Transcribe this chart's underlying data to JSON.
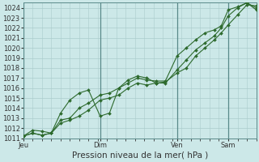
{
  "background_color": "#cce8e8",
  "grid_color": "#aacccc",
  "line_color": "#2d6a2d",
  "marker_color": "#2d6a2d",
  "xlabel": "Pression niveau de la mer( hPa )",
  "ylim": [
    1011,
    1024.5
  ],
  "ytick_min": 1011,
  "ytick_max": 1024,
  "xtick_labels": [
    "Jeu",
    "Dim",
    "Ven",
    "Sam"
  ],
  "xtick_positions": [
    0.0,
    0.33,
    0.66,
    0.88
  ],
  "xlim": [
    0.0,
    1.0
  ],
  "series1_x": [
    0.0,
    0.04,
    0.08,
    0.12,
    0.16,
    0.2,
    0.24,
    0.28,
    0.33,
    0.37,
    0.41,
    0.45,
    0.49,
    0.53,
    0.57,
    0.61,
    0.66,
    0.7,
    0.74,
    0.78,
    0.82,
    0.85,
    0.88,
    0.92,
    0.96,
    1.0
  ],
  "series1_y": [
    1011.2,
    1011.8,
    1011.7,
    1011.5,
    1012.8,
    1013.0,
    1014.0,
    1014.5,
    1015.3,
    1015.5,
    1016.0,
    1016.8,
    1017.2,
    1017.0,
    1016.5,
    1016.6,
    1017.5,
    1018.0,
    1019.2,
    1020.0,
    1020.8,
    1021.5,
    1022.3,
    1023.3,
    1024.3,
    1024.2
  ],
  "series2_x": [
    0.0,
    0.04,
    0.08,
    0.12,
    0.16,
    0.2,
    0.24,
    0.28,
    0.33,
    0.37,
    0.41,
    0.45,
    0.49,
    0.53,
    0.57,
    0.61,
    0.66,
    0.7,
    0.74,
    0.78,
    0.82,
    0.85,
    0.88,
    0.92,
    0.96,
    1.0
  ],
  "series2_y": [
    1011.2,
    1011.5,
    1011.3,
    1011.5,
    1013.5,
    1014.8,
    1015.5,
    1015.8,
    1013.2,
    1013.5,
    1016.0,
    1016.5,
    1017.0,
    1016.8,
    1016.7,
    1016.7,
    1019.2,
    1020.0,
    1020.8,
    1021.5,
    1021.8,
    1022.2,
    1023.8,
    1024.1,
    1024.5,
    1023.8
  ],
  "series3_x": [
    0.0,
    0.04,
    0.08,
    0.12,
    0.16,
    0.2,
    0.24,
    0.28,
    0.33,
    0.37,
    0.41,
    0.45,
    0.49,
    0.53,
    0.57,
    0.61,
    0.66,
    0.7,
    0.74,
    0.78,
    0.82,
    0.85,
    0.88,
    0.92,
    0.96,
    1.0
  ],
  "series3_y": [
    1011.2,
    1011.5,
    1011.3,
    1011.5,
    1012.5,
    1012.8,
    1013.2,
    1013.8,
    1014.8,
    1015.0,
    1015.3,
    1016.0,
    1016.5,
    1016.3,
    1016.5,
    1016.5,
    1017.8,
    1018.8,
    1019.8,
    1020.5,
    1021.2,
    1022.0,
    1023.2,
    1024.0,
    1024.5,
    1024.0
  ],
  "vline_positions": [
    0.0,
    0.33,
    0.66,
    0.88
  ],
  "vline_color": "#5a8a8a",
  "axis_color": "#5a8a8a",
  "tick_fontsize": 6,
  "label_fontsize": 7.5,
  "marker_size": 2.0,
  "line_width": 0.8
}
